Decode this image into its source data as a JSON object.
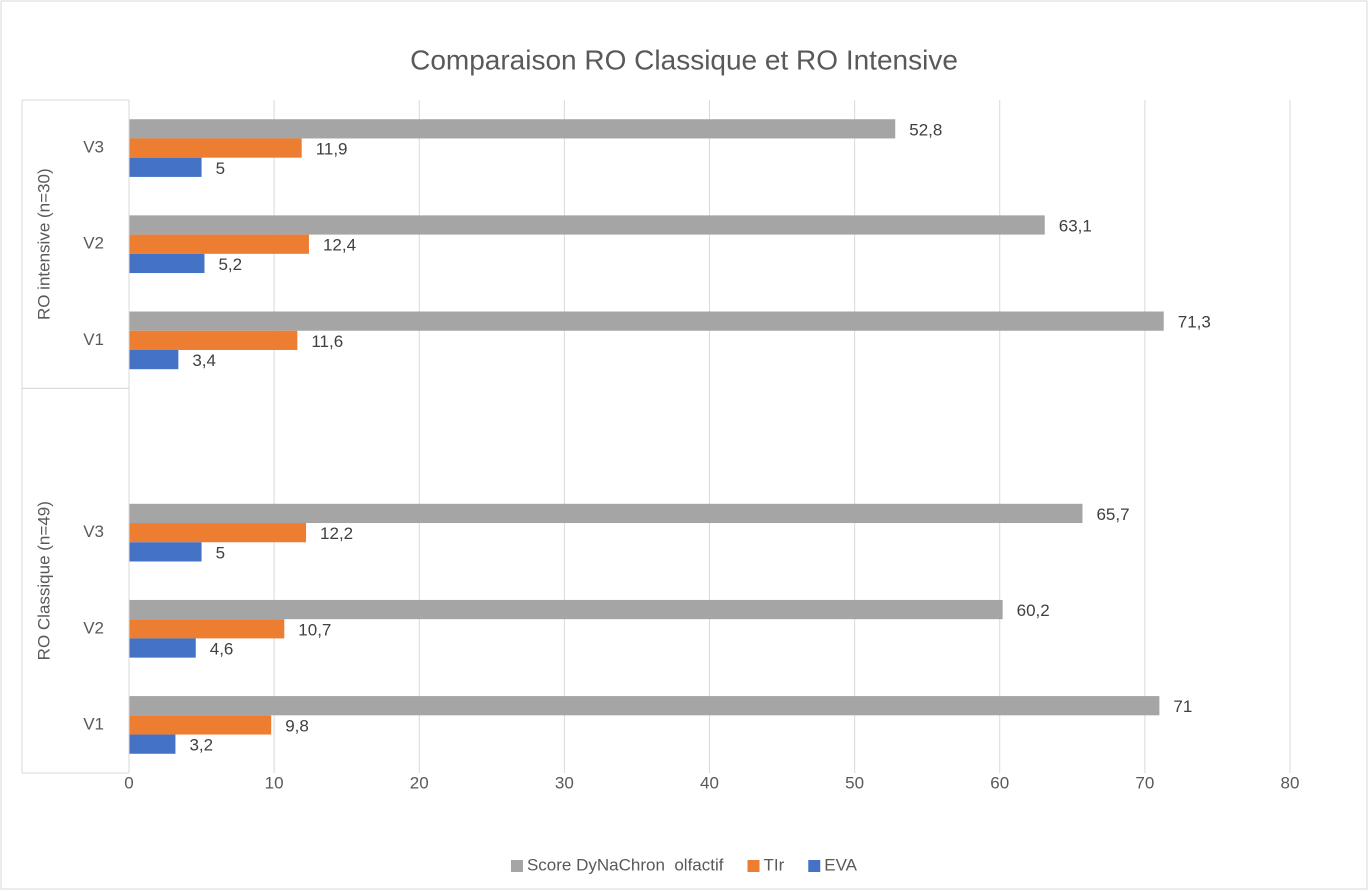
{
  "chart_data": {
    "type": "bar",
    "orientation": "horizontal",
    "title": "Comparaison RO Classique et RO Intensive",
    "groups": [
      {
        "label": "RO Classique (n=49)",
        "categories": [
          "V1",
          "V2",
          "V3"
        ]
      },
      {
        "label": "RO intensive (n=30)",
        "categories": [
          "V1",
          "V2",
          "V3"
        ]
      }
    ],
    "series": [
      {
        "name": "Score DyNaChron  olfactif",
        "color": "#a5a5a5",
        "values": [
          71,
          60.2,
          65.7,
          71.3,
          63.1,
          52.8
        ],
        "value_labels": [
          "71",
          "60,2",
          "65,7",
          "71,3",
          "63,1",
          "52,8"
        ]
      },
      {
        "name": "TIr",
        "color": "#ed7d31",
        "values": [
          9.8,
          10.7,
          12.2,
          11.6,
          12.4,
          11.9
        ],
        "value_labels": [
          "9,8",
          "10,7",
          "12,2",
          "11,6",
          "12,4",
          "11,9"
        ]
      },
      {
        "name": "EVA",
        "color": "#4472c4",
        "values": [
          3.2,
          4.6,
          5,
          3.4,
          5.2,
          5
        ],
        "value_labels": [
          "3,2",
          "4,6",
          "5",
          "3,4",
          "5,2",
          "5"
        ]
      }
    ],
    "xlim": [
      0,
      80
    ],
    "xticks": [
      0,
      10,
      20,
      30,
      40,
      50,
      60,
      70,
      80
    ],
    "grid": true,
    "legend": "bottom"
  }
}
